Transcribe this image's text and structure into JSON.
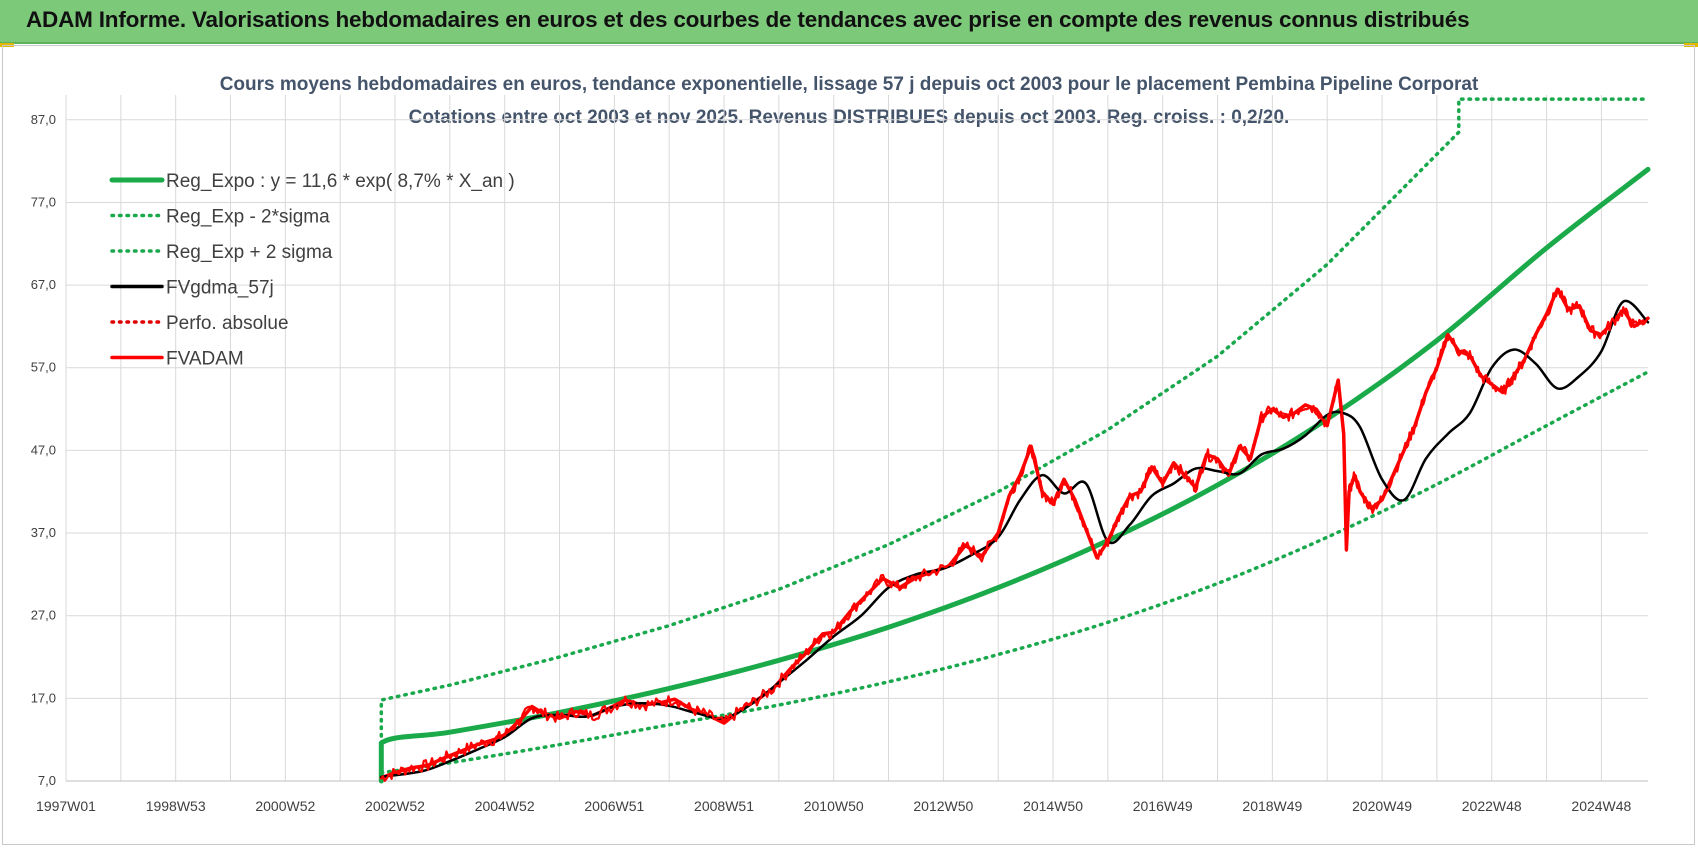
{
  "header": {
    "title": "ADAM Informe. Valorisations hebdomadaires en euros et des courbes de tendances avec prise en compte des revenus connus distribués"
  },
  "colors": {
    "header_bg": "#7dc97a",
    "reg_green": "#1aaa4a",
    "band_green": "#19a84c",
    "fvadam_red": "#ff0000",
    "perfo_red": "#e00000",
    "smooth_black": "#000000",
    "grid": "#d9d9d9"
  },
  "chart_data": {
    "type": "line",
    "title_line1": "Cours moyens hebdomadaires en euros, tendance exponentielle, lissage 57 j depuis oct 2003 pour le placement Pembina Pipeline Corporat",
    "title_line2": "Cotations entre oct 2003 et nov 2025. Revenus DISTRIBUES depuis oct 2003. Reg. croiss. : 0,2/20.",
    "xlabel": "",
    "ylabel": "",
    "ylim": [
      7,
      90
    ],
    "xlim": [
      1997.0,
      2025.85
    ],
    "grid": true,
    "legend_position": "top-left",
    "y_ticks": [
      "7,0",
      "17,0",
      "27,0",
      "37,0",
      "47,0",
      "57,0",
      "67,0",
      "77,0",
      "87,0"
    ],
    "y_tick_values": [
      7,
      17,
      27,
      37,
      47,
      57,
      67,
      77,
      87
    ],
    "x_ticks": [
      "1997W01",
      "1998W53",
      "2000W52",
      "2002W52",
      "2004W52",
      "2006W51",
      "2008W51",
      "2010W50",
      "2012W50",
      "2014W50",
      "2016W49",
      "2018W49",
      "2020W49",
      "2022W48",
      "2024W48"
    ],
    "x_tick_values": [
      1997.0,
      1999.0,
      2001.0,
      2003.0,
      2005.0,
      2007.0,
      2009.0,
      2011.0,
      2013.0,
      2015.0,
      2017.0,
      2019.0,
      2021.0,
      2023.0,
      2025.0
    ],
    "legend": [
      {
        "label": "Reg_Expo : y = 11,6 * exp( 8,7% *  X_an )",
        "style": "solid",
        "color": "#1aaa4a"
      },
      {
        "label": "Reg_Exp - 2*sigma",
        "style": "dotted",
        "color": "#19a84c"
      },
      {
        "label": "Reg_Exp + 2 sigma",
        "style": "dotted",
        "color": "#19a84c"
      },
      {
        "label": "FVgdma_57j",
        "style": "solid",
        "color": "#000000"
      },
      {
        "label": "Perfo. absolue",
        "style": "dotted",
        "color": "#e00000"
      },
      {
        "label": "FVADAM",
        "style": "solid",
        "color": "#ff0000"
      }
    ],
    "series": [
      {
        "name": "Reg_Expo : y = 11,6 * exp( 8,7% *  X_an )",
        "x": [
          2002.75,
          2002.75,
          2004.0,
          2006.0,
          2008.0,
          2010.0,
          2012.0,
          2014.0,
          2016.0,
          2018.0,
          2020.0,
          2022.0,
          2024.0,
          2025.85
        ],
        "values": [
          7.0,
          11.6,
          12.9,
          15.3,
          18.2,
          21.6,
          25.6,
          30.4,
          36.1,
          42.8,
          50.8,
          60.3,
          71.5,
          81.0
        ]
      },
      {
        "name": "Reg_Exp - 2*sigma",
        "x": [
          2002.75,
          2004.0,
          2006.0,
          2008.0,
          2010.0,
          2012.0,
          2014.0,
          2016.0,
          2018.0,
          2020.0,
          2022.0,
          2024.0,
          2025.85
        ],
        "values": [
          8.0,
          9.2,
          11.4,
          13.8,
          16.2,
          19.0,
          22.3,
          26.2,
          30.9,
          36.5,
          42.9,
          50.0,
          56.5
        ]
      },
      {
        "name": "Reg_Exp + 2 sigma",
        "x": [
          2002.75,
          2002.75,
          2004.0,
          2006.0,
          2008.0,
          2010.0,
          2012.0,
          2014.0,
          2016.0,
          2018.0,
          2020.0,
          2021.5,
          2022.4,
          2022.4,
          2025.85
        ],
        "values": [
          7.0,
          16.8,
          18.6,
          22.0,
          25.8,
          30.2,
          35.6,
          42.0,
          49.5,
          58.4,
          69.5,
          79.5,
          85.5,
          89.5,
          89.5
        ]
      },
      {
        "name": "FVgdma_57j",
        "x": [
          2002.75,
          2003.5,
          2004.0,
          2004.5,
          2005.0,
          2005.5,
          2006.0,
          2006.5,
          2007.0,
          2007.5,
          2008.0,
          2008.5,
          2009.0,
          2009.5,
          2010.0,
          2010.5,
          2011.0,
          2011.5,
          2012.0,
          2012.5,
          2013.0,
          2013.5,
          2014.0,
          2014.4,
          2014.8,
          2015.2,
          2015.6,
          2016.0,
          2016.4,
          2016.8,
          2017.2,
          2017.6,
          2018.0,
          2018.4,
          2018.8,
          2019.2,
          2019.6,
          2020.0,
          2020.3,
          2020.6,
          2021.0,
          2021.4,
          2021.8,
          2022.2,
          2022.6,
          2023.0,
          2023.4,
          2023.8,
          2024.2,
          2024.6,
          2025.0,
          2025.4,
          2025.85
        ],
        "values": [
          7.5,
          8.2,
          9.4,
          10.8,
          12.3,
          14.6,
          15.0,
          14.8,
          16.0,
          16.4,
          16.1,
          15.2,
          14.6,
          16.3,
          18.9,
          21.6,
          24.5,
          27.0,
          30.4,
          32.0,
          32.7,
          34.3,
          36.5,
          41.0,
          44.0,
          41.8,
          43.0,
          36.0,
          38.0,
          41.5,
          43.0,
          44.8,
          44.5,
          44.2,
          46.5,
          47.2,
          48.8,
          51.3,
          51.5,
          49.8,
          43.5,
          41.0,
          46.0,
          49.0,
          51.5,
          57.0,
          59.2,
          57.5,
          54.5,
          56.0,
          59.0,
          65.0,
          62.5
        ]
      },
      {
        "name": "FVADAM",
        "x": [
          2002.75,
          2003.0,
          2003.3,
          2003.6,
          2003.9,
          2004.2,
          2004.5,
          2004.8,
          2005.0,
          2005.3,
          2005.5,
          2005.7,
          2006.0,
          2006.3,
          2006.6,
          2006.9,
          2007.2,
          2007.5,
          2007.8,
          2008.1,
          2008.4,
          2008.7,
          2009.0,
          2009.3,
          2009.6,
          2009.9,
          2010.2,
          2010.5,
          2010.8,
          2011.0,
          2011.3,
          2011.6,
          2011.9,
          2012.2,
          2012.5,
          2012.8,
          2013.1,
          2013.4,
          2013.7,
          2014.0,
          2014.2,
          2014.4,
          2014.6,
          2014.8,
          2015.0,
          2015.2,
          2015.4,
          2015.6,
          2015.8,
          2016.0,
          2016.2,
          2016.4,
          2016.6,
          2016.8,
          2017.0,
          2017.2,
          2017.4,
          2017.6,
          2017.8,
          2018.0,
          2018.2,
          2018.4,
          2018.6,
          2018.8,
          2019.0,
          2019.2,
          2019.4,
          2019.6,
          2019.8,
          2020.0,
          2020.2,
          2020.3,
          2020.35,
          2020.4,
          2020.5,
          2020.6,
          2020.8,
          2021.0,
          2021.2,
          2021.4,
          2021.6,
          2021.8,
          2022.0,
          2022.2,
          2022.4,
          2022.6,
          2022.8,
          2023.0,
          2023.2,
          2023.4,
          2023.6,
          2023.8,
          2024.0,
          2024.2,
          2024.4,
          2024.6,
          2024.8,
          2025.0,
          2025.2,
          2025.4,
          2025.6,
          2025.85
        ],
        "values": [
          7.4,
          8.0,
          8.6,
          8.9,
          9.8,
          10.6,
          11.4,
          12.0,
          12.6,
          14.5,
          16.0,
          15.2,
          14.6,
          15.4,
          14.9,
          15.8,
          16.8,
          16.2,
          16.4,
          16.9,
          15.7,
          15.0,
          14.0,
          15.6,
          16.8,
          18.2,
          20.5,
          22.5,
          24.8,
          25.0,
          27.5,
          29.5,
          31.5,
          30.4,
          31.6,
          32.3,
          33.0,
          35.5,
          34.2,
          37.0,
          41.5,
          44.0,
          47.5,
          42.0,
          40.5,
          43.5,
          41.0,
          37.5,
          34.0,
          36.0,
          39.0,
          41.5,
          42.0,
          45.0,
          43.0,
          45.5,
          44.0,
          42.5,
          46.5,
          46.0,
          44.0,
          47.5,
          46.0,
          51.0,
          52.0,
          51.0,
          51.5,
          52.5,
          52.0,
          50.0,
          55.5,
          49.0,
          35.0,
          42.0,
          44.0,
          42.0,
          40.0,
          41.0,
          44.0,
          47.0,
          50.0,
          54.0,
          57.0,
          61.0,
          59.0,
          58.5,
          56.0,
          55.0,
          54.0,
          56.0,
          58.0,
          61.0,
          63.5,
          66.5,
          64.0,
          64.5,
          61.5,
          61.0,
          62.5,
          64.0,
          62.0,
          63.0
        ]
      }
    ]
  }
}
